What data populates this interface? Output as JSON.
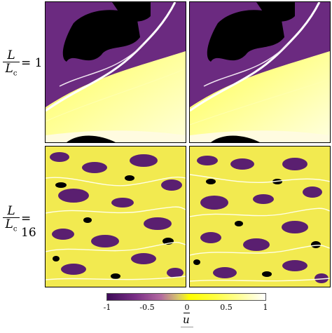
{
  "rows": [
    {
      "label_num": "L",
      "label_den": "L",
      "label_den_sub": "c",
      "label_eq": "= 1"
    },
    {
      "label_num": "L",
      "label_den": "L",
      "label_den_sub": "c",
      "label_eq": "= 16"
    }
  ],
  "colorbar": {
    "ticks": [
      "-1",
      "-0.5",
      "0",
      "0.5",
      "1"
    ],
    "label": "u",
    "colors": [
      "#3d0a58",
      "#7a2f86",
      "#d9c96a",
      "#ffff00",
      "#ffffff"
    ]
  }
}
